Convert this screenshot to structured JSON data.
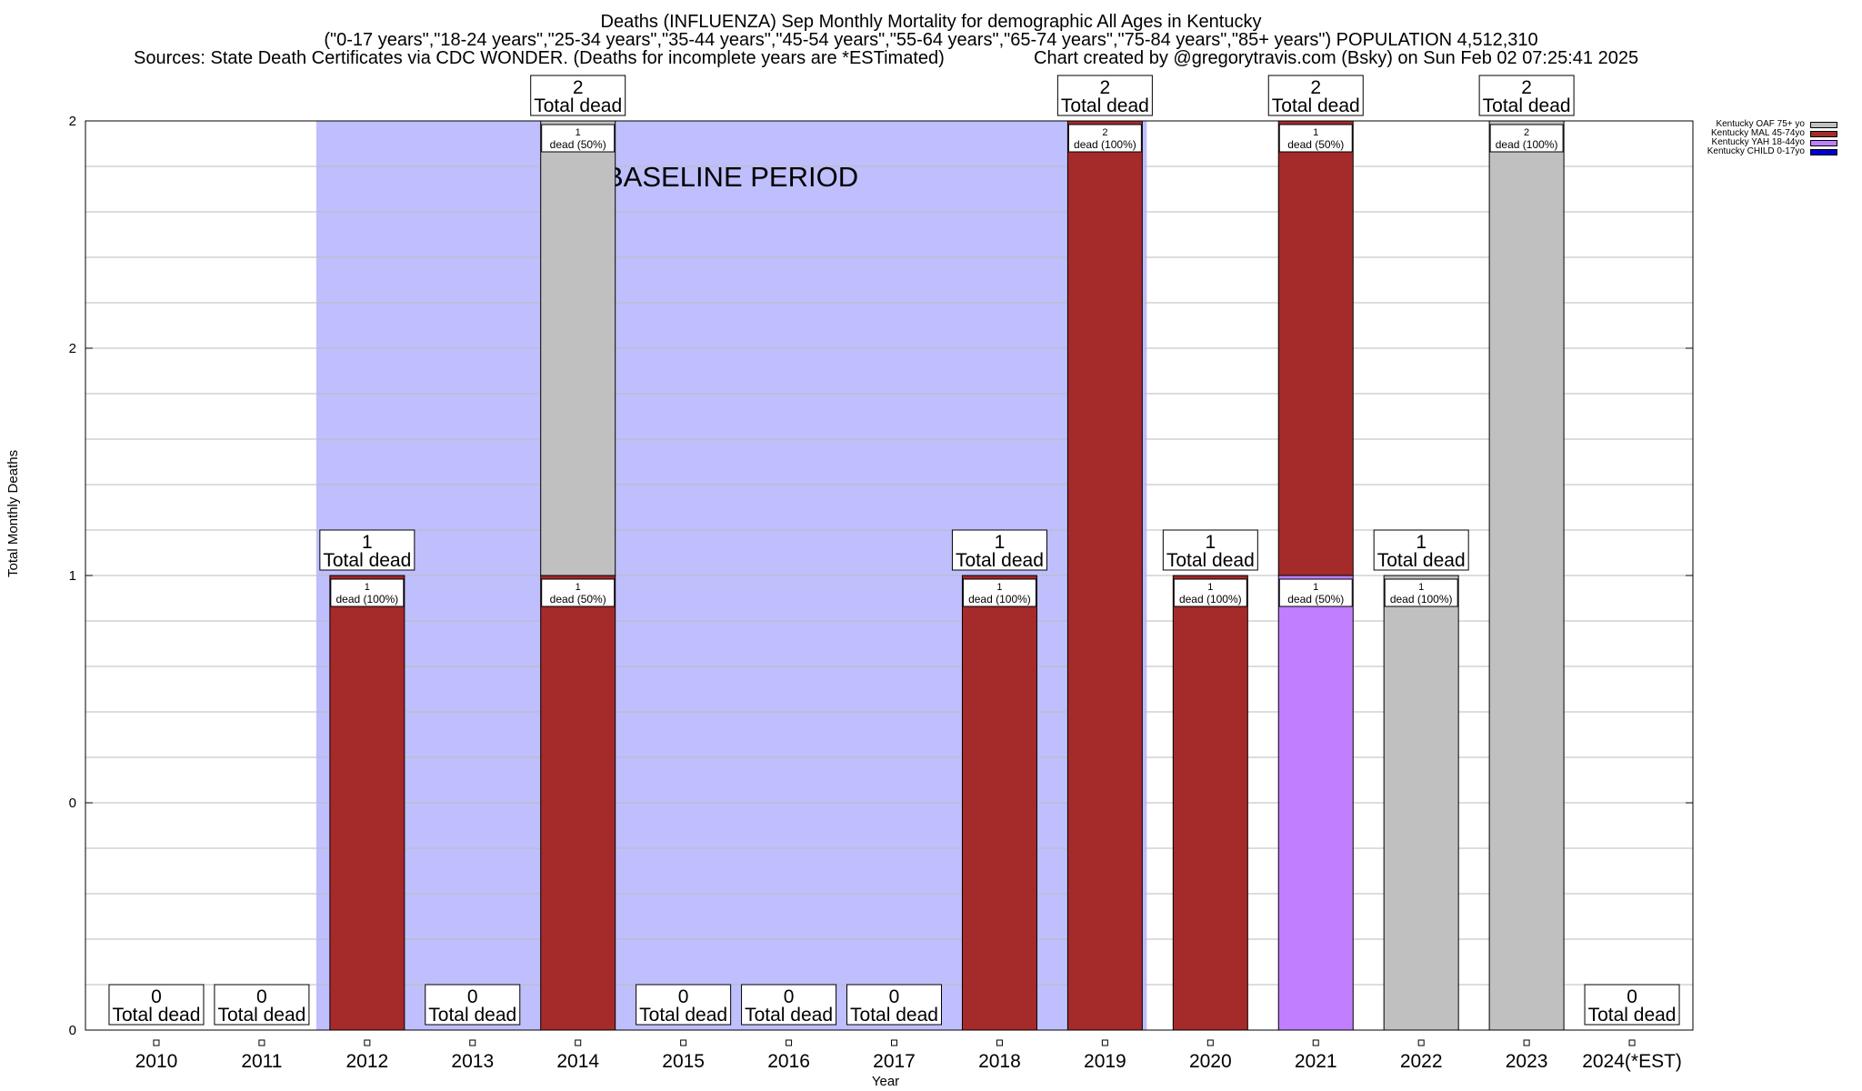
{
  "title": {
    "line1": "Deaths (INFLUENZA) Sep Monthly Mortality for demographic All Ages in Kentucky",
    "line2": "(\"0-17 years\",\"18-24 years\",\"25-34 years\",\"35-44 years\",\"45-54 years\",\"55-64 years\",\"65-74 years\",\"75-84 years\",\"85+ years\") POPULATION 4,512,310",
    "sources": "Sources: State Death Certificates via CDC WONDER. (Deaths for incomplete years are *ESTimated)",
    "credit": "Chart created by @gregorytravis.com (Bsky) on Sun Feb 02 07:25:41 2025"
  },
  "colors": {
    "baseline": "#bfbffd",
    "oaf": "#c0c0c0",
    "mal": "#a52a2a",
    "yah": "#bf7fff",
    "child": "#0000cd"
  },
  "chart_data": {
    "type": "bar",
    "stacked": true,
    "xlabel": "Year",
    "ylabel": "Total Monthly Deaths",
    "ylim": [
      0,
      2
    ],
    "ytick_labels": [
      "0",
      "0",
      "1",
      "2",
      "2"
    ],
    "grid": true,
    "legend_position": "top-right",
    "baseline_label": "BASELINE PERIOD",
    "baseline_range": [
      "2012",
      "2019"
    ],
    "categories": [
      "2010",
      "2011",
      "2012",
      "2013",
      "2014",
      "2015",
      "2016",
      "2017",
      "2018",
      "2019",
      "2020",
      "2021",
      "2022",
      "2023",
      "2024(*EST)"
    ],
    "series": [
      {
        "name": "Kentucky OAF 75+ yo",
        "color_key": "oaf",
        "values": [
          0,
          0,
          0,
          0,
          1,
          0,
          0,
          0,
          0,
          0,
          0,
          0,
          1,
          2,
          0
        ]
      },
      {
        "name": "Kentucky MAL 45-74yo",
        "color_key": "mal",
        "values": [
          0,
          0,
          1,
          0,
          1,
          0,
          0,
          0,
          1,
          2,
          1,
          1,
          0,
          0,
          0
        ]
      },
      {
        "name": "Kentucky YAH 18-44yo",
        "color_key": "yah",
        "values": [
          0,
          0,
          0,
          0,
          0,
          0,
          0,
          0,
          0,
          0,
          0,
          1,
          0,
          0,
          0
        ]
      },
      {
        "name": "Kentucky CHILD 0-17yo",
        "color_key": "child",
        "values": [
          0,
          0,
          0,
          0,
          0,
          0,
          0,
          0,
          0,
          0,
          0,
          0,
          0,
          0,
          0
        ]
      }
    ],
    "stack_order": [
      "yah",
      "mal",
      "oaf"
    ],
    "totals": [
      0,
      0,
      1,
      0,
      2,
      0,
      0,
      0,
      1,
      2,
      1,
      2,
      1,
      2,
      0
    ],
    "total_label": "Total dead",
    "segment_labels": [
      {
        "year": "2012",
        "line1": "1",
        "line2": "dead (100%)"
      },
      {
        "year": "2014",
        "line1": "1",
        "line2": "dead (50%)"
      },
      {
        "year": "2014",
        "line1": "1",
        "line2": "dead (50%)"
      },
      {
        "year": "2018",
        "line1": "1",
        "line2": "dead (100%)"
      },
      {
        "year": "2019",
        "line1": "2",
        "line2": "dead (100%)"
      },
      {
        "year": "2020",
        "line1": "1",
        "line2": "dead (100%)"
      },
      {
        "year": "2021",
        "line1": "1",
        "line2": "dead (50%)"
      },
      {
        "year": "2021",
        "line1": "1",
        "line2": "dead (50%)"
      },
      {
        "year": "2022",
        "line1": "1",
        "line2": "dead (100%)"
      },
      {
        "year": "2023",
        "line1": "2",
        "line2": "dead (100%)"
      }
    ]
  },
  "legend": [
    {
      "label": "Kentucky OAF 75+ yo",
      "color_key": "oaf"
    },
    {
      "label": "Kentucky MAL 45-74yo",
      "color_key": "mal"
    },
    {
      "label": "Kentucky YAH 18-44yo",
      "color_key": "yah"
    },
    {
      "label": "Kentucky CHILD 0-17yo",
      "color_key": "child"
    }
  ]
}
